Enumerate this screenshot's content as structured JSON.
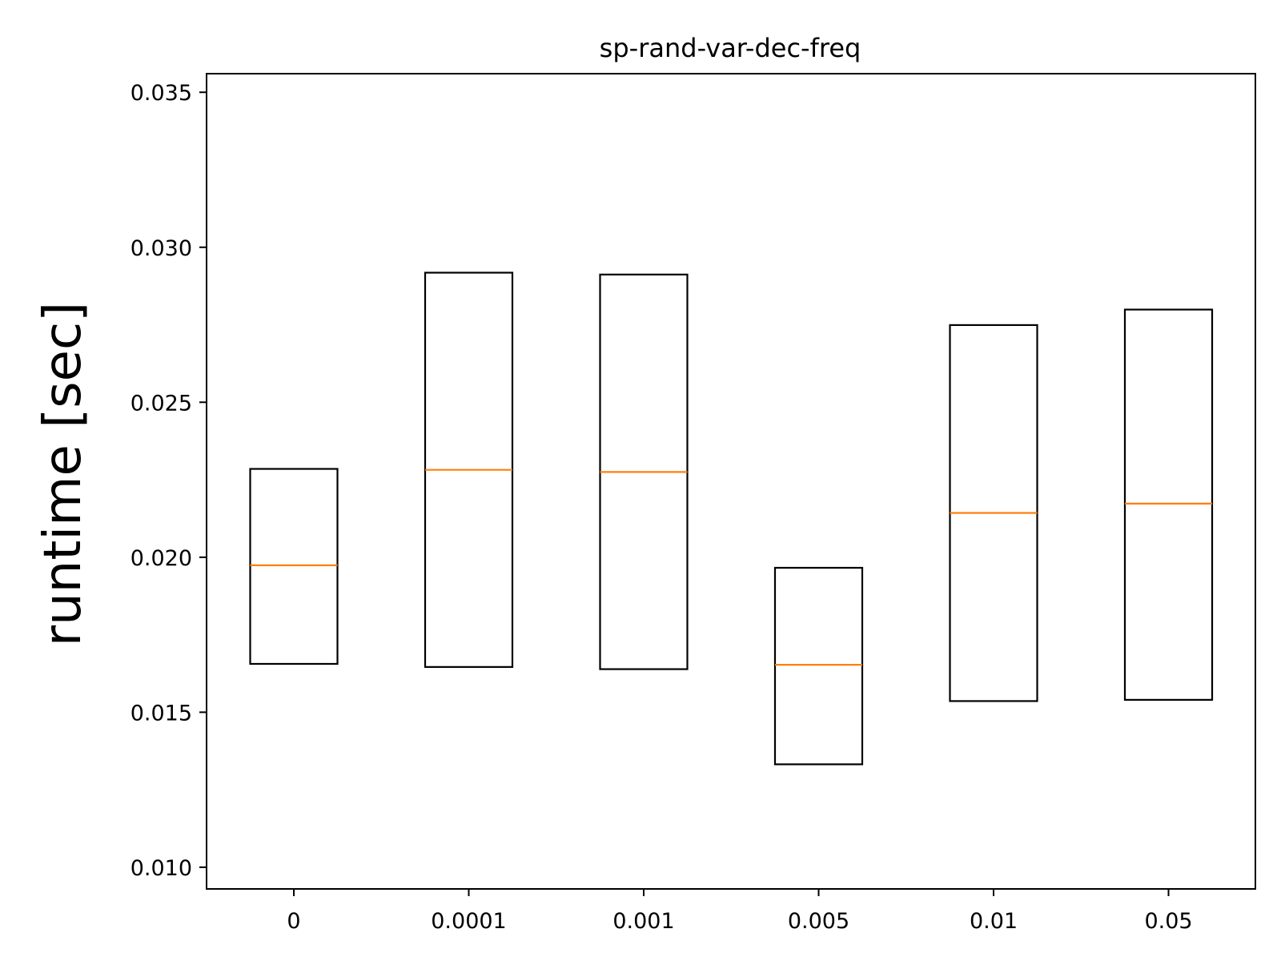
{
  "chart_data": {
    "type": "box",
    "title": "sp-rand-var-dec-freq",
    "xlabel": "",
    "ylabel": "runtime [sec]",
    "ylim": [
      0.0093,
      0.0356
    ],
    "yticks": [
      "0.010",
      "0.015",
      "0.020",
      "0.025",
      "0.030",
      "0.035"
    ],
    "yticks_values": [
      0.01,
      0.015,
      0.02,
      0.025,
      0.03,
      0.035
    ],
    "categories": [
      "0",
      "0.0001",
      "0.001",
      "0.005",
      "0.01",
      "0.05"
    ],
    "highlight_category": "0.005",
    "boxes": [
      {
        "q1": 0.01656,
        "median": 0.01974,
        "q3": 0.02285
      },
      {
        "q1": 0.01646,
        "median": 0.02282,
        "q3": 0.02918
      },
      {
        "q1": 0.01639,
        "median": 0.02275,
        "q3": 0.02912
      },
      {
        "q1": 0.01332,
        "median": 0.01653,
        "q3": 0.01966
      },
      {
        "q1": 0.01536,
        "median": 0.02143,
        "q3": 0.02749
      },
      {
        "q1": 0.0154,
        "median": 0.02173,
        "q3": 0.02799
      }
    ],
    "colors": {
      "box": "#000000",
      "median": "#ff7f0e",
      "highlight_label": "#ff0000"
    },
    "grid": false,
    "legend": "none"
  }
}
